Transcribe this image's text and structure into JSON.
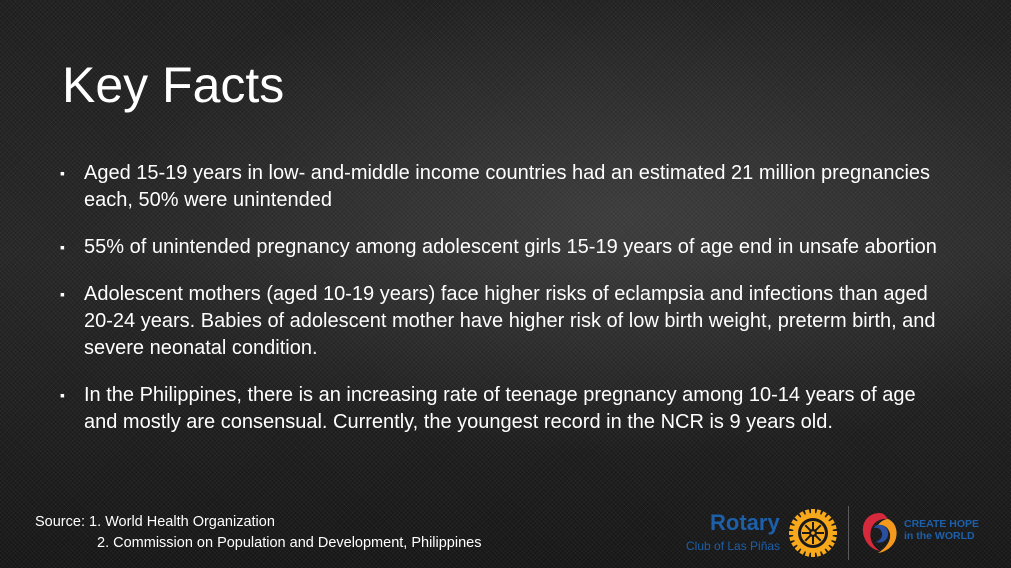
{
  "slide": {
    "title": "Key Facts",
    "bullet_marker": "▪",
    "bullets": [
      "Aged 15-19 years in low- and-middle income countries had an estimated 21 million pregnancies each, 50% were unintended",
      "55% of unintended pregnancy among adolescent girls 15-19 years of age end in unsafe abortion",
      "Adolescent mothers (aged 10-19 years) face higher risks of eclampsia and infections than aged 20-24 years.  Babies of adolescent mother have higher risk of low birth weight, preterm birth, and severe neonatal condition.",
      "In the Philippines, there is an increasing rate of teenage pregnancy among 10-14 years of age and mostly are consensual.  Currently, the youngest record in the NCR is 9 years old."
    ],
    "source": {
      "line1": "Source: 1. World Health Organization",
      "line2": "2. Commission on Population and Development, Philippines"
    }
  },
  "logos": {
    "rotary_word": "Rotary",
    "rotary_club": "Club of Las Piñas",
    "rotary_wheel_icon": "rotary-wheel-icon",
    "theme_mark_icon": "create-hope-mark-icon",
    "theme_line1": "CREATE HOPE",
    "theme_line2": "in the WORLD",
    "colors": {
      "rotary_blue": "#1d5fa8",
      "rotary_gold": "#f7a81b",
      "theme_red": "#d62a3c",
      "theme_orange": "#f39a1e",
      "theme_blue": "#2b4fa0"
    }
  }
}
